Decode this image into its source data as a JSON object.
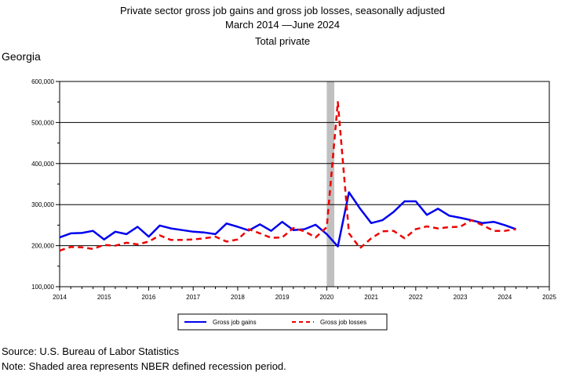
{
  "chart_data": {
    "type": "line",
    "title": "Private sector gross job gains and gross job losses, seasonally adjusted",
    "subtitle_period_start": "March 2014",
    "subtitle_period_end": "June 2024",
    "subtitle_dash": "—",
    "subtitle2": "Total private",
    "region_label": "Georgia",
    "xlim": [
      2014,
      2025
    ],
    "ylim": [
      100000,
      600000
    ],
    "x_ticks": [
      "2014",
      "2015",
      "2016",
      "2017",
      "2018",
      "2019",
      "2020",
      "2021",
      "2022",
      "2023",
      "2024",
      "2025"
    ],
    "y_ticks": [
      "100,000",
      "200,000",
      "300,000",
      "400,000",
      "500,000",
      "600,000"
    ],
    "y_tick_values": [
      100000,
      200000,
      300000,
      400000,
      500000,
      600000
    ],
    "gridlines": true,
    "legend_placement": "bottom",
    "recession_shading": {
      "start": 2020.0,
      "end": 2020.17,
      "color": "#c0c0c0"
    },
    "series": [
      {
        "name": "Gross job gains",
        "color": "#0000ee",
        "style": "solid",
        "points": [
          [
            2014.0,
            220000
          ],
          [
            2014.25,
            230000
          ],
          [
            2014.5,
            231000
          ],
          [
            2014.75,
            236000
          ],
          [
            2015.0,
            215000
          ],
          [
            2015.25,
            234000
          ],
          [
            2015.5,
            228000
          ],
          [
            2015.75,
            246000
          ],
          [
            2016.0,
            222000
          ],
          [
            2016.25,
            249000
          ],
          [
            2016.5,
            242000
          ],
          [
            2016.75,
            238000
          ],
          [
            2017.0,
            234000
          ],
          [
            2017.25,
            232000
          ],
          [
            2017.5,
            228000
          ],
          [
            2017.75,
            254000
          ],
          [
            2018.0,
            246000
          ],
          [
            2018.25,
            237000
          ],
          [
            2018.5,
            252000
          ],
          [
            2018.75,
            236000
          ],
          [
            2019.0,
            258000
          ],
          [
            2019.25,
            238000
          ],
          [
            2019.5,
            240000
          ],
          [
            2019.75,
            251000
          ],
          [
            2020.0,
            228000
          ],
          [
            2020.25,
            198000
          ],
          [
            2020.5,
            330000
          ],
          [
            2020.75,
            290000
          ],
          [
            2021.0,
            255000
          ],
          [
            2021.25,
            262000
          ],
          [
            2021.5,
            282000
          ],
          [
            2021.75,
            308000
          ],
          [
            2022.0,
            308000
          ],
          [
            2022.25,
            275000
          ],
          [
            2022.5,
            290000
          ],
          [
            2022.75,
            273000
          ],
          [
            2023.0,
            268000
          ],
          [
            2023.25,
            262000
          ],
          [
            2023.5,
            255000
          ],
          [
            2023.75,
            258000
          ],
          [
            2024.0,
            250000
          ],
          [
            2024.25,
            240000
          ]
        ]
      },
      {
        "name": "Gross job losses",
        "color": "#ee0000",
        "style": "dashed",
        "points": [
          [
            2014.0,
            188000
          ],
          [
            2014.25,
            197000
          ],
          [
            2014.5,
            196000
          ],
          [
            2014.75,
            192000
          ],
          [
            2015.0,
            202000
          ],
          [
            2015.25,
            200000
          ],
          [
            2015.5,
            207000
          ],
          [
            2015.75,
            203000
          ],
          [
            2016.0,
            210000
          ],
          [
            2016.25,
            225000
          ],
          [
            2016.5,
            214000
          ],
          [
            2016.75,
            214000
          ],
          [
            2017.0,
            215000
          ],
          [
            2017.25,
            218000
          ],
          [
            2017.5,
            222000
          ],
          [
            2017.75,
            210000
          ],
          [
            2018.0,
            215000
          ],
          [
            2018.25,
            240000
          ],
          [
            2018.5,
            230000
          ],
          [
            2018.75,
            219000
          ],
          [
            2019.0,
            220000
          ],
          [
            2019.25,
            243000
          ],
          [
            2019.5,
            235000
          ],
          [
            2019.75,
            220000
          ],
          [
            2020.0,
            245000
          ],
          [
            2020.25,
            550000
          ],
          [
            2020.5,
            230000
          ],
          [
            2020.75,
            194000
          ],
          [
            2021.0,
            218000
          ],
          [
            2021.25,
            235000
          ],
          [
            2021.5,
            236000
          ],
          [
            2021.75,
            218000
          ],
          [
            2022.0,
            240000
          ],
          [
            2022.25,
            247000
          ],
          [
            2022.5,
            242000
          ],
          [
            2022.75,
            245000
          ],
          [
            2023.0,
            246000
          ],
          [
            2023.25,
            262000
          ],
          [
            2023.5,
            250000
          ],
          [
            2023.75,
            236000
          ],
          [
            2024.0,
            236000
          ],
          [
            2024.25,
            240000
          ]
        ]
      }
    ]
  },
  "footer": {
    "source": "Source: U.S. Bureau of Labor Statistics",
    "note": "Note: Shaded area represents NBER defined recession period."
  }
}
